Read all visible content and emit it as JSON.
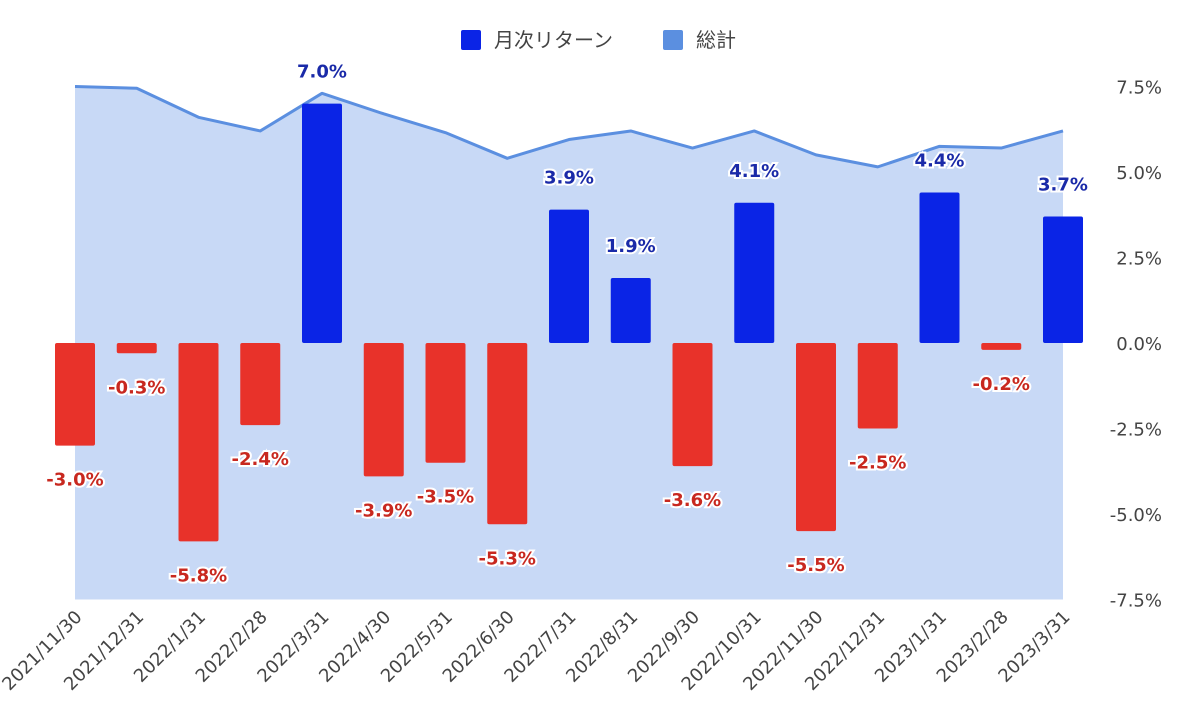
{
  "chart_data": {
    "type": "bar",
    "categories": [
      "2021/11/30",
      "2021/12/31",
      "2022/1/31",
      "2022/2/28",
      "2022/3/31",
      "2022/4/30",
      "2022/5/31",
      "2022/6/30",
      "2022/7/31",
      "2022/8/31",
      "2022/9/30",
      "2022/10/31",
      "2022/11/30",
      "2022/12/31",
      "2023/1/31",
      "2023/2/28",
      "2023/3/31"
    ],
    "series": [
      {
        "name": "月次リターン",
        "kind": "bar",
        "values": [
          -3.0,
          -0.3,
          -5.8,
          -2.4,
          7.0,
          -3.9,
          -3.5,
          -5.3,
          3.9,
          1.9,
          -3.6,
          4.1,
          -5.5,
          -2.5,
          4.4,
          -0.2,
          3.7
        ],
        "labels": [
          "-3.0%",
          "-0.3%",
          "-5.8%",
          "-2.4%",
          "7.0%",
          "-3.9%",
          "-3.5%",
          "-5.3%",
          "3.9%",
          "1.9%",
          "-3.6%",
          "4.1%",
          "-5.5%",
          "-2.5%",
          "4.4%",
          "-0.2%",
          "3.7%"
        ]
      },
      {
        "name": "総計",
        "kind": "area",
        "values": [
          7.5,
          7.45,
          6.6,
          6.2,
          7.3,
          6.7,
          6.15,
          5.4,
          5.95,
          6.2,
          5.7,
          6.2,
          5.5,
          5.15,
          5.75,
          5.7,
          6.2
        ]
      }
    ],
    "ylim": [
      -7.5,
      7.5
    ],
    "yticks": [
      "7.5%",
      "5.0%",
      "2.5%",
      "0.0%",
      "-2.5%",
      "-5.0%",
      "-7.5%"
    ],
    "legend_position": "top",
    "grid": false,
    "colors": {
      "positive_bar": "#0a24e6",
      "negative_bar": "#e8322a",
      "positive_label": "#1a2aa8",
      "negative_label": "#c8281f",
      "area_fill": "#c8d9f6",
      "area_line": "#5b8fe0",
      "legend_bar_swatch": "#0a24e6",
      "legend_area_swatch": "#5b8fe0"
    }
  }
}
